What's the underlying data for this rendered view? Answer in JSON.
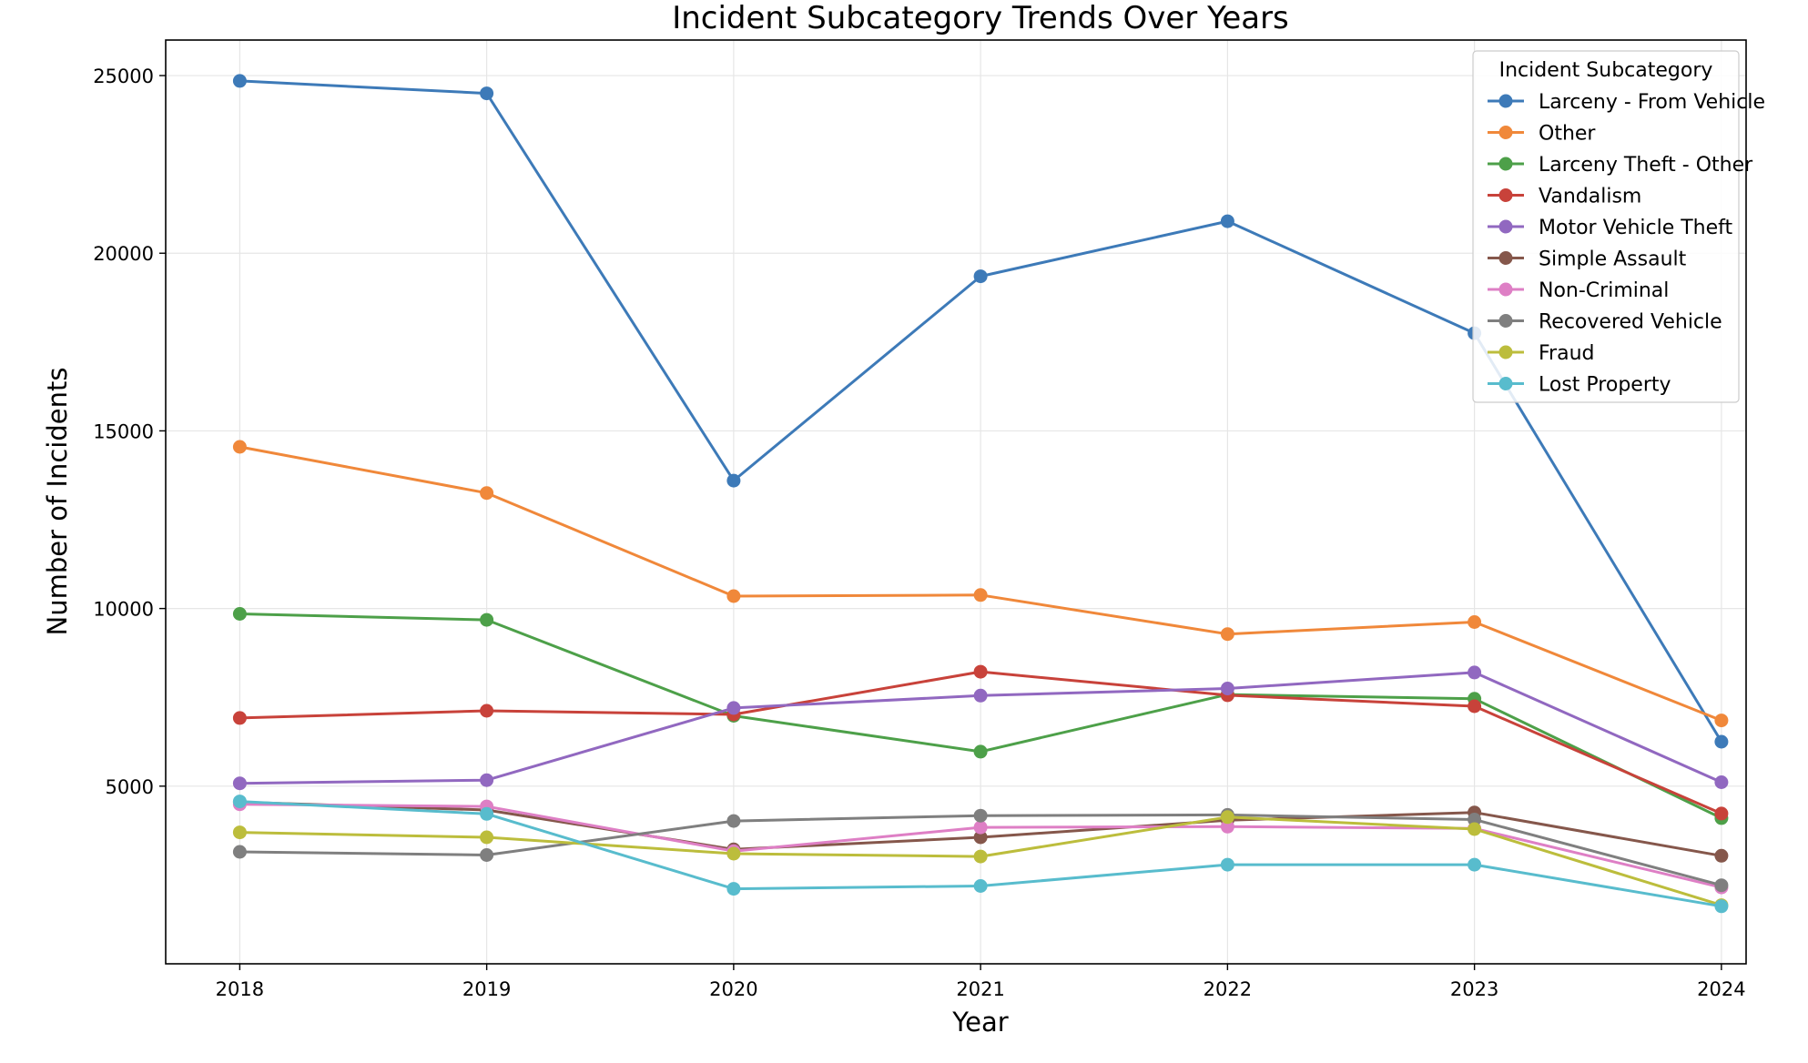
{
  "chart_data": {
    "type": "line",
    "title": "Incident Subcategory Trends Over Years",
    "xlabel": "Year",
    "ylabel": "Number of Incidents",
    "x": [
      2018,
      2019,
      2020,
      2021,
      2022,
      2023,
      2024
    ],
    "xlim": [
      2017.7,
      2024.1
    ],
    "ylim": [
      0,
      26000
    ],
    "yticks": [
      5000,
      10000,
      15000,
      20000,
      25000
    ],
    "grid": true,
    "legend": {
      "title": "Incident Subcategory",
      "placement": "top-right"
    },
    "series": [
      {
        "name": "Larceny - From Vehicle",
        "color": "#3d7ab8",
        "values": [
          24850,
          24500,
          13600,
          19350,
          20900,
          17750,
          6250
        ]
      },
      {
        "name": "Other",
        "color": "#f0883a",
        "values": [
          14550,
          13250,
          10350,
          10380,
          9280,
          9620,
          6850
        ]
      },
      {
        "name": "Larceny Theft - Other",
        "color": "#4da049",
        "values": [
          9850,
          9680,
          6980,
          5970,
          7580,
          7460,
          4100
        ]
      },
      {
        "name": "Vandalism",
        "color": "#c8423a",
        "values": [
          6920,
          7120,
          7020,
          8220,
          7560,
          7250,
          4230
        ]
      },
      {
        "name": "Motor Vehicle Theft",
        "color": "#9168c0",
        "values": [
          5080,
          5170,
          7200,
          7550,
          7750,
          8200,
          5110
        ]
      },
      {
        "name": "Simple Assault",
        "color": "#85574b",
        "values": [
          4550,
          4330,
          3220,
          3560,
          4040,
          4260,
          3040
        ]
      },
      {
        "name": "Non-Criminal",
        "color": "#de7fc5",
        "values": [
          4490,
          4430,
          3170,
          3840,
          3860,
          3810,
          2150
        ]
      },
      {
        "name": "Recovered Vehicle",
        "color": "#7f7f7f",
        "values": [
          3150,
          3060,
          4020,
          4170,
          4190,
          4060,
          2210
        ]
      },
      {
        "name": "Fraud",
        "color": "#bcbd3c",
        "values": [
          3700,
          3560,
          3100,
          3020,
          4130,
          3790,
          1650
        ]
      },
      {
        "name": "Lost Property",
        "color": "#58bccd",
        "values": [
          4570,
          4220,
          2110,
          2190,
          2790,
          2790,
          1620
        ]
      }
    ]
  }
}
